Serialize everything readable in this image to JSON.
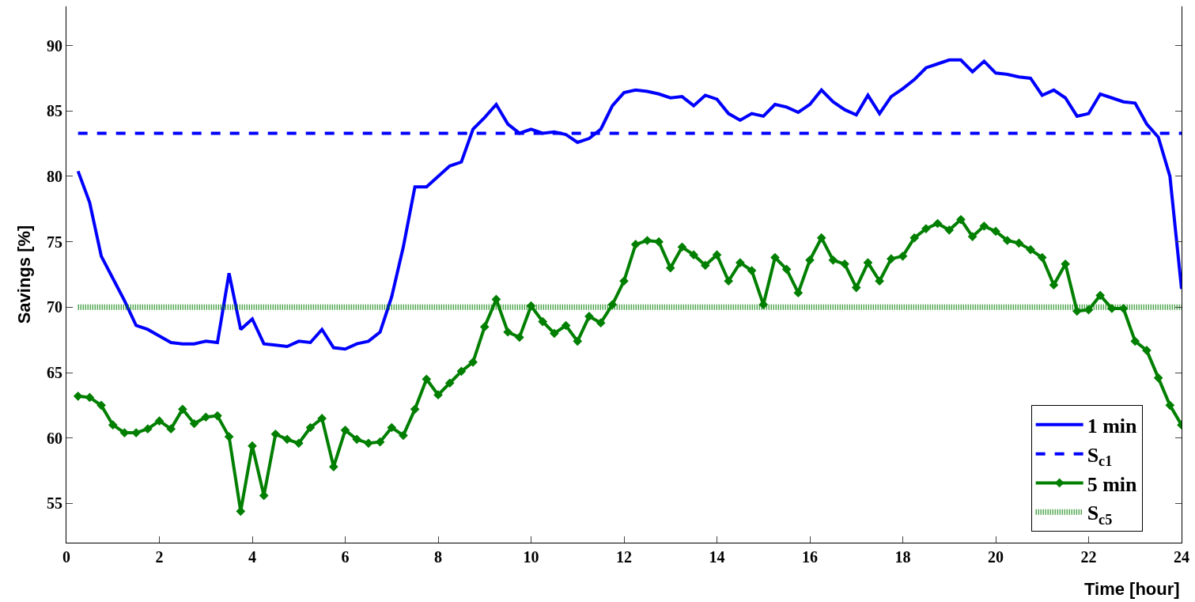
{
  "chart_data": {
    "type": "line",
    "xlabel": "Time [hour]",
    "ylabel": "Savings [%]",
    "x": [
      0.25,
      0.5,
      0.75,
      1,
      1.25,
      1.5,
      1.75,
      2,
      2.25,
      2.5,
      2.75,
      3,
      3.25,
      3.5,
      3.75,
      4,
      4.25,
      4.5,
      4.75,
      5,
      5.25,
      5.5,
      5.75,
      6,
      6.25,
      6.5,
      6.75,
      7,
      7.25,
      7.5,
      7.75,
      8,
      8.25,
      8.5,
      8.75,
      9,
      9.25,
      9.5,
      9.75,
      10,
      10.25,
      10.5,
      10.75,
      11,
      11.25,
      11.5,
      11.75,
      12,
      12.25,
      12.5,
      12.75,
      13,
      13.25,
      13.5,
      13.75,
      14,
      14.25,
      14.5,
      14.75,
      15,
      15.25,
      15.5,
      15.75,
      16,
      16.25,
      16.5,
      16.75,
      17,
      17.25,
      17.5,
      17.75,
      18,
      18.25,
      18.5,
      18.75,
      19,
      19.25,
      19.5,
      19.75,
      20,
      20.25,
      20.5,
      20.75,
      21,
      21.25,
      21.5,
      21.75,
      22,
      22.25,
      22.5,
      22.75,
      23,
      23.25,
      23.5,
      23.75,
      24
    ],
    "series": [
      {
        "name": "1 min",
        "color": "#0000ff",
        "line_style": "solid",
        "marker": "none",
        "values": [
          80.4,
          78.0,
          73.9,
          72.2,
          70.5,
          68.6,
          68.3,
          67.8,
          67.3,
          67.2,
          67.2,
          67.4,
          67.3,
          72.6,
          68.3,
          69.1,
          67.2,
          67.1,
          67.0,
          67.4,
          67.3,
          68.3,
          66.9,
          66.8,
          67.2,
          67.4,
          68.1,
          70.8,
          74.6,
          79.2,
          79.2,
          80.0,
          80.8,
          81.1,
          83.6,
          84.5,
          85.5,
          84.0,
          83.3,
          83.6,
          83.3,
          83.4,
          83.2,
          82.6,
          82.9,
          83.6,
          85.4,
          86.4,
          86.6,
          86.5,
          86.3,
          86.0,
          86.1,
          85.4,
          86.2,
          85.9,
          84.8,
          84.3,
          84.8,
          84.6,
          85.5,
          85.3,
          84.9,
          85.5,
          86.6,
          85.7,
          85.1,
          84.7,
          86.2,
          84.8,
          86.1,
          86.7,
          87.4,
          88.3,
          88.6,
          88.9,
          88.9,
          88.0,
          88.8,
          87.9,
          87.8,
          87.6,
          87.5,
          86.2,
          86.6,
          86.0,
          84.6,
          84.8,
          86.3,
          86.0,
          85.7,
          85.6,
          84.0,
          83.0,
          80.0,
          71.4
        ]
      },
      {
        "name": "S$_{c1}$",
        "color": "#0000ff",
        "line_style": "dashed",
        "marker": "none",
        "values": [
          83.3,
          83.3,
          83.3,
          83.3,
          83.3,
          83.3,
          83.3,
          83.3,
          83.3,
          83.3,
          83.3,
          83.3,
          83.3,
          83.3,
          83.3,
          83.3,
          83.3,
          83.3,
          83.3,
          83.3,
          83.3,
          83.3,
          83.3,
          83.3,
          83.3,
          83.3,
          83.3,
          83.3,
          83.3,
          83.3,
          83.3,
          83.3,
          83.3,
          83.3,
          83.3,
          83.3,
          83.3,
          83.3,
          83.3,
          83.3,
          83.3,
          83.3,
          83.3,
          83.3,
          83.3,
          83.3,
          83.3,
          83.3,
          83.3,
          83.3,
          83.3,
          83.3,
          83.3,
          83.3,
          83.3,
          83.3,
          83.3,
          83.3,
          83.3,
          83.3,
          83.3,
          83.3,
          83.3,
          83.3,
          83.3,
          83.3,
          83.3,
          83.3,
          83.3,
          83.3,
          83.3,
          83.3,
          83.3,
          83.3,
          83.3,
          83.3,
          83.3,
          83.3,
          83.3,
          83.3,
          83.3,
          83.3,
          83.3,
          83.3,
          83.3,
          83.3,
          83.3,
          83.3,
          83.3,
          83.3,
          83.3,
          83.3,
          83.3,
          83.3,
          83.3,
          83.3
        ]
      },
      {
        "name": "5 min",
        "color": "#007f00",
        "line_style": "solid",
        "marker": "diamond",
        "values": [
          63.2,
          63.1,
          62.5,
          61.0,
          60.4,
          60.4,
          60.7,
          61.3,
          60.7,
          62.2,
          61.1,
          61.6,
          61.7,
          60.1,
          54.4,
          59.4,
          55.6,
          60.3,
          59.9,
          59.6,
          60.8,
          61.5,
          57.8,
          60.6,
          59.9,
          59.6,
          59.7,
          60.8,
          60.2,
          62.2,
          64.5,
          63.3,
          64.2,
          65.1,
          65.8,
          68.5,
          70.6,
          68.1,
          67.7,
          70.1,
          68.9,
          68.0,
          68.6,
          67.4,
          69.3,
          68.8,
          70.2,
          72.0,
          74.8,
          75.1,
          75.0,
          73.0,
          74.6,
          74.0,
          73.2,
          74.0,
          72.0,
          73.4,
          72.8,
          70.2,
          73.8,
          72.9,
          71.1,
          73.6,
          75.3,
          73.6,
          73.3,
          71.5,
          73.4,
          72.0,
          73.7,
          73.9,
          75.3,
          76.0,
          76.4,
          75.9,
          76.7,
          75.4,
          76.2,
          75.8,
          75.1,
          74.9,
          74.4,
          73.8,
          71.7,
          73.3,
          69.7,
          69.8,
          70.9,
          69.9,
          69.9,
          67.4,
          66.7,
          64.6,
          62.5,
          61.0
        ]
      },
      {
        "name": "S$_{c5}$",
        "color": "#007f00",
        "line_style": "dotted",
        "marker": "none",
        "values": [
          70,
          70,
          70,
          70,
          70,
          70,
          70,
          70,
          70,
          70,
          70,
          70,
          70,
          70,
          70,
          70,
          70,
          70,
          70,
          70,
          70,
          70,
          70,
          70,
          70,
          70,
          70,
          70,
          70,
          70,
          70,
          70,
          70,
          70,
          70,
          70,
          70,
          70,
          70,
          70,
          70,
          70,
          70,
          70,
          70,
          70,
          70,
          70,
          70,
          70,
          70,
          70,
          70,
          70,
          70,
          70,
          70,
          70,
          70,
          70,
          70,
          70,
          70,
          70,
          70,
          70,
          70,
          70,
          70,
          70,
          70,
          70,
          70,
          70,
          70,
          70,
          70,
          70,
          70,
          70,
          70,
          70,
          70,
          70,
          70,
          70,
          70,
          70,
          70,
          70,
          70,
          70,
          70,
          70,
          70,
          70
        ]
      }
    ],
    "xlim": [
      0,
      24
    ],
    "xticks": [
      0,
      2,
      4,
      6,
      8,
      10,
      12,
      14,
      16,
      18,
      20,
      22,
      24
    ],
    "ylim": [
      52,
      93
    ],
    "yticks": [
      55,
      60,
      65,
      70,
      75,
      80,
      85,
      90
    ],
    "legend": "bottom right"
  }
}
